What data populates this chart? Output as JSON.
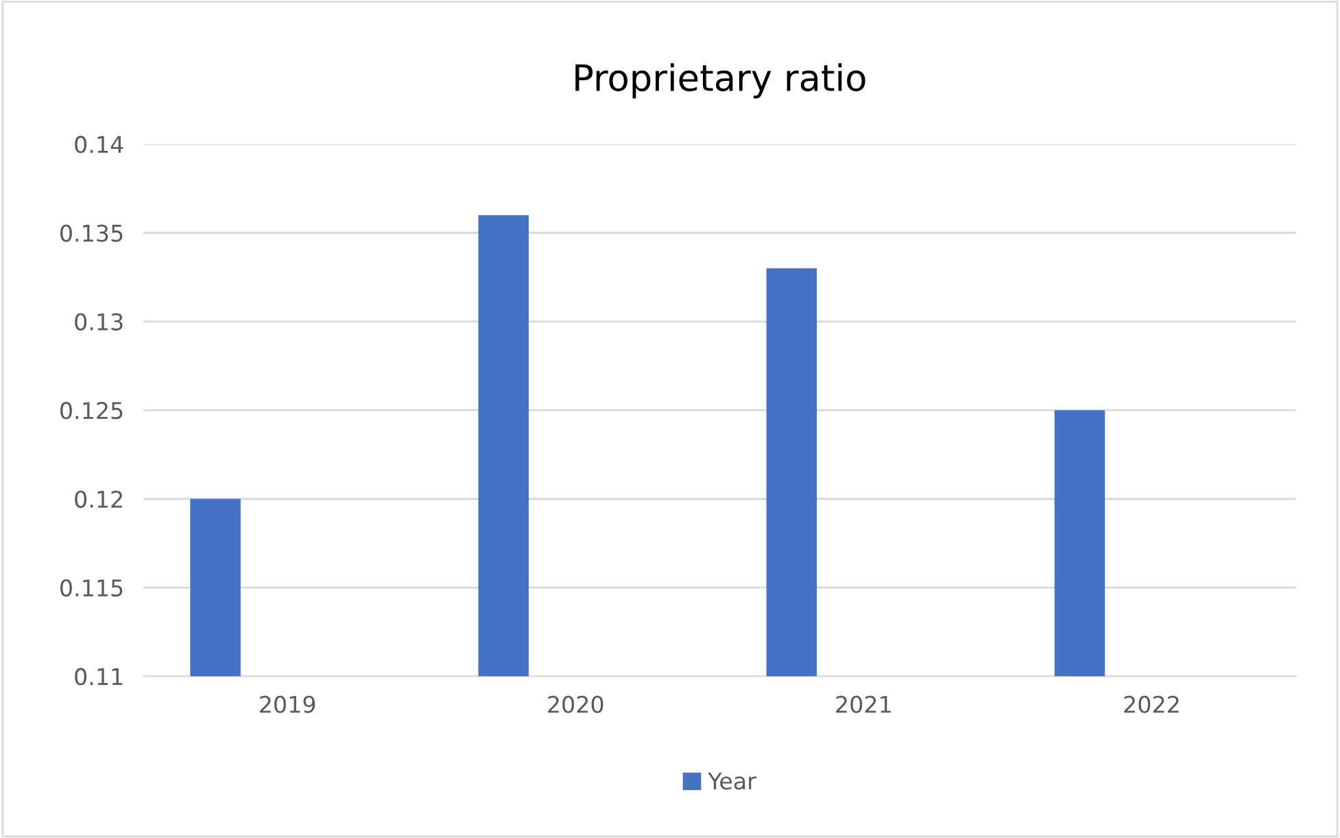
{
  "chart_data": {
    "type": "bar",
    "title": "Proprietary ratio",
    "categories": [
      "2019",
      "2020",
      "2021",
      "2022"
    ],
    "series": [
      {
        "name": "Year",
        "color": "#4472c4",
        "values": [
          0.12,
          0.136,
          0.133,
          0.125
        ]
      }
    ],
    "ylim": [
      0.11,
      0.14
    ],
    "yticks": [
      0.11,
      0.115,
      0.12,
      0.125,
      0.13,
      0.135,
      0.14
    ],
    "grid": "y",
    "legend": "bottom"
  }
}
